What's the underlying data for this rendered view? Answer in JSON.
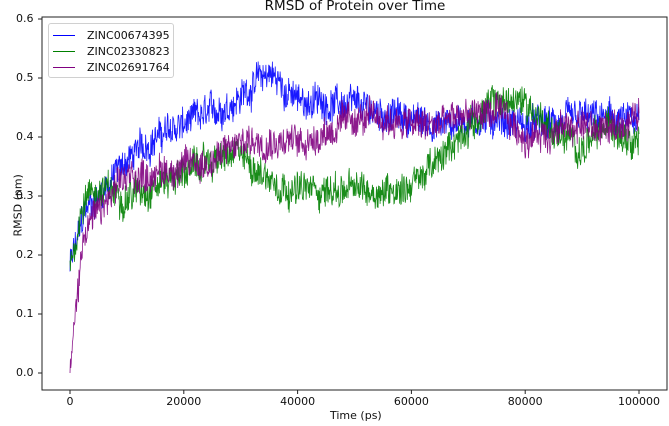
{
  "chart_data": {
    "type": "line",
    "title": "RMSD of Protein over Time",
    "xlabel": "Time (ps)",
    "ylabel": "RMSD (nm)",
    "xlim": [
      -5000,
      105000
    ],
    "ylim": [
      -0.03,
      0.6
    ],
    "xticks": [
      0,
      20000,
      40000,
      60000,
      80000,
      100000
    ],
    "xtick_labels": [
      "0",
      "20000",
      "40000",
      "60000",
      "80000",
      "100000"
    ],
    "yticks": [
      0.0,
      0.1,
      0.2,
      0.3,
      0.4,
      0.5,
      0.6
    ],
    "ytick_labels": [
      "0.0",
      "0.1",
      "0.2",
      "0.3",
      "0.4",
      "0.5",
      "0.6"
    ],
    "grid": false,
    "legend_position": "upper left",
    "x": [
      0,
      2500,
      5000,
      10000,
      15000,
      20000,
      25000,
      30000,
      35000,
      40000,
      45000,
      50000,
      55000,
      60000,
      65000,
      70000,
      75000,
      80000,
      85000,
      90000,
      95000,
      100000
    ],
    "series": [
      {
        "name": "ZINC00674395",
        "color": "#0000ff",
        "values": [
          0.18,
          0.27,
          0.3,
          0.36,
          0.4,
          0.42,
          0.44,
          0.47,
          0.51,
          0.46,
          0.46,
          0.45,
          0.44,
          0.43,
          0.42,
          0.43,
          0.43,
          0.42,
          0.42,
          0.43,
          0.43,
          0.42
        ]
      },
      {
        "name": "ZINC02330823",
        "color": "#008000",
        "values": [
          0.18,
          0.3,
          0.31,
          0.3,
          0.32,
          0.34,
          0.36,
          0.37,
          0.33,
          0.31,
          0.31,
          0.31,
          0.31,
          0.32,
          0.36,
          0.42,
          0.46,
          0.46,
          0.41,
          0.38,
          0.42,
          0.4
        ]
      },
      {
        "name": "ZINC02691764",
        "color": "#800080",
        "values": [
          0.0,
          0.25,
          0.27,
          0.33,
          0.34,
          0.35,
          0.36,
          0.39,
          0.4,
          0.39,
          0.41,
          0.43,
          0.43,
          0.42,
          0.42,
          0.44,
          0.44,
          0.4,
          0.41,
          0.42,
          0.41,
          0.44
        ]
      }
    ]
  }
}
